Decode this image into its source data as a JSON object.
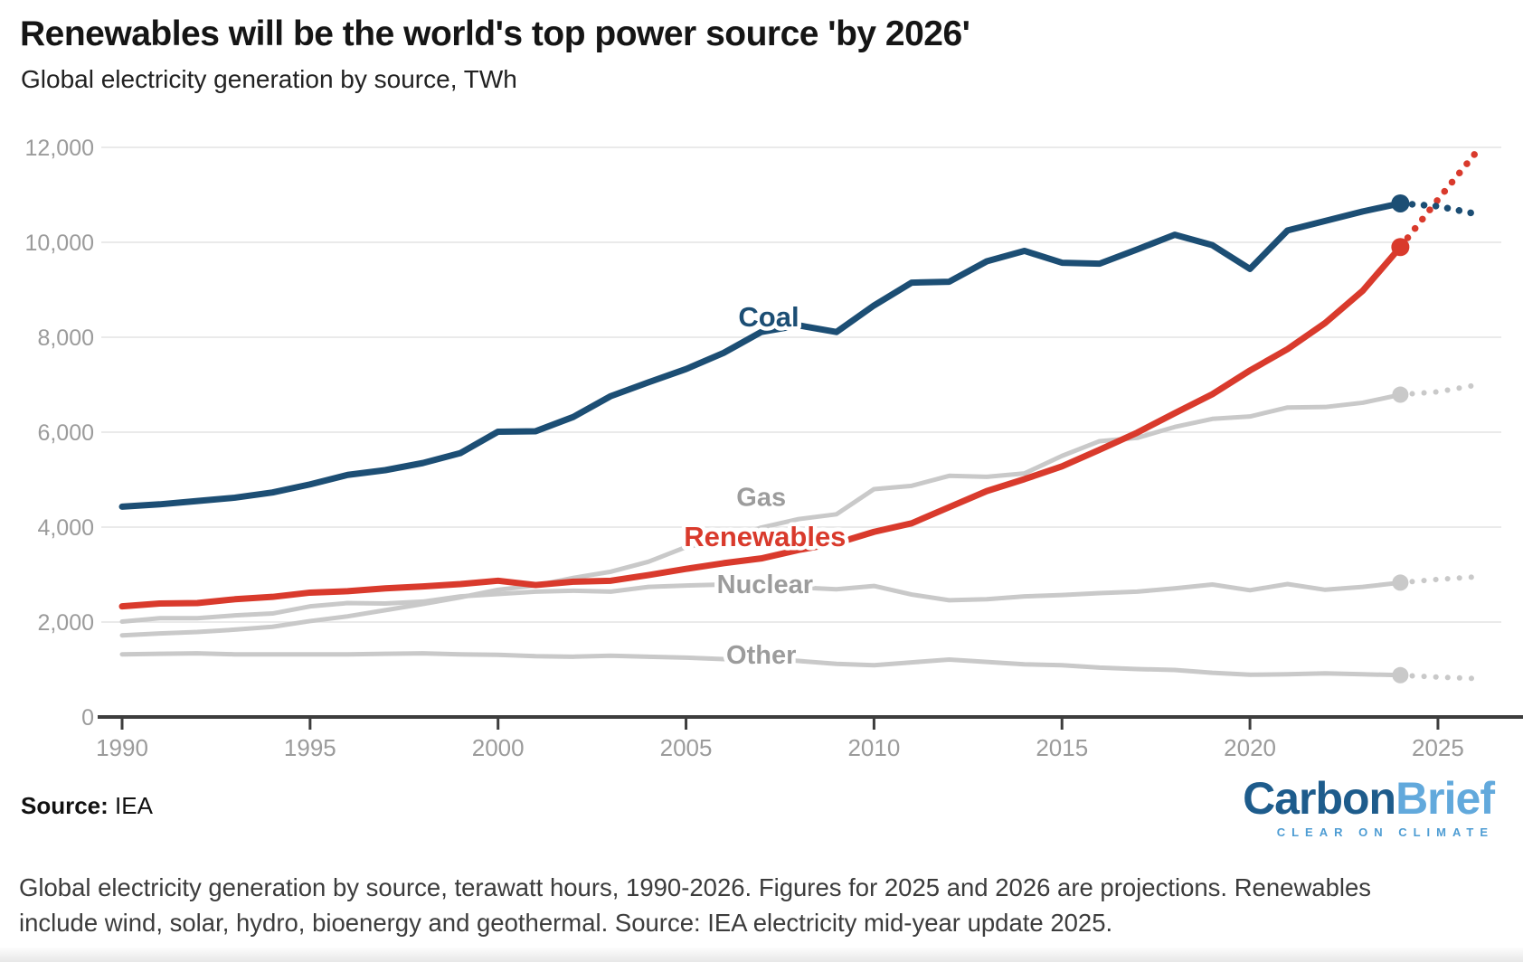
{
  "header": {
    "title": "Renewables will be the world's top power source 'by 2026'",
    "subtitle": "Global electricity generation by source, TWh"
  },
  "footer": {
    "source_label": "Source:",
    "source_value": "IEA",
    "caption": "Global electricity generation by source, terawatt hours, 1990-2026. Figures for 2025 and 2026 are projections. Renewables include wind, solar, hydro, bioenergy and geothermal. Source: IEA electricity mid-year update 2025.",
    "logo": {
      "part1": "Carbon",
      "part2": "Brief",
      "tagline": "CLEAR ON CLIMATE"
    }
  },
  "colors": {
    "coal": "#1c4e74",
    "renewables": "#d93a2c",
    "gray_line": "#c9c9c9",
    "gray_label": "#9c9c9c",
    "grid": "#e3e3e3",
    "axis": "#3d3d3d",
    "tick_text": "#9b9b9b"
  },
  "chart_data": {
    "type": "line",
    "title": "Renewables will be the world's top power source 'by 2026'",
    "subtitle": "Global electricity generation by source, TWh",
    "xlabel": "",
    "ylabel": "TWh",
    "xlim": [
      1990,
      2026
    ],
    "ylim": [
      0,
      12000
    ],
    "grid": true,
    "legend_position": "inline-labels",
    "yticks": [
      0,
      2000,
      4000,
      6000,
      8000,
      10000,
      12000
    ],
    "xticks": [
      1990,
      1995,
      2000,
      2005,
      2010,
      2015,
      2020,
      2025
    ],
    "years": [
      1990,
      1991,
      1992,
      1993,
      1994,
      1995,
      1996,
      1997,
      1998,
      1999,
      2000,
      2001,
      2002,
      2003,
      2004,
      2005,
      2006,
      2007,
      2008,
      2009,
      2010,
      2011,
      2012,
      2013,
      2014,
      2015,
      2016,
      2017,
      2018,
      2019,
      2020,
      2021,
      2022,
      2023,
      2024
    ],
    "projection_years": [
      2024,
      2025,
      2026
    ],
    "projection_note": "2025 and 2026 are projections (dotted)",
    "series": [
      {
        "id": "gas",
        "label": "Gas",
        "color": "#c9c9c9",
        "label_color": "#9c9c9c",
        "emphasis": false,
        "label_at": {
          "year": 2007.0,
          "value": 4640
        },
        "values": [
          1720,
          1760,
          1790,
          1840,
          1900,
          2020,
          2120,
          2250,
          2380,
          2520,
          2680,
          2770,
          2930,
          3060,
          3270,
          3580,
          3720,
          3990,
          4170,
          4270,
          4800,
          4870,
          5080,
          5060,
          5130,
          5500,
          5810,
          5880,
          6110,
          6280,
          6330,
          6520,
          6530,
          6620,
          6790
        ],
        "projection": [
          6790,
          6850,
          6990
        ]
      },
      {
        "id": "nuclear",
        "label": "Nuclear",
        "color": "#c9c9c9",
        "label_color": "#9c9c9c",
        "emphasis": false,
        "label_at": {
          "year": 2007.1,
          "value": 2800
        },
        "values": [
          2010,
          2080,
          2080,
          2140,
          2180,
          2330,
          2400,
          2390,
          2430,
          2540,
          2590,
          2640,
          2660,
          2640,
          2740,
          2770,
          2790,
          2720,
          2730,
          2690,
          2760,
          2580,
          2460,
          2480,
          2540,
          2570,
          2610,
          2640,
          2710,
          2790,
          2670,
          2800,
          2680,
          2740,
          2830
        ],
        "projection": [
          2830,
          2900,
          2950
        ]
      },
      {
        "id": "other",
        "label": "Other",
        "color": "#c9c9c9",
        "label_color": "#9c9c9c",
        "emphasis": false,
        "label_at": {
          "year": 2007.0,
          "value": 1310
        },
        "values": [
          1320,
          1330,
          1340,
          1320,
          1320,
          1320,
          1320,
          1330,
          1340,
          1320,
          1310,
          1280,
          1270,
          1290,
          1270,
          1250,
          1220,
          1230,
          1180,
          1120,
          1090,
          1150,
          1210,
          1160,
          1110,
          1090,
          1040,
          1010,
          990,
          930,
          890,
          900,
          920,
          900,
          880
        ],
        "projection": [
          880,
          840,
          810
        ]
      },
      {
        "id": "renewables",
        "label": "Renewables",
        "color": "#d93a2c",
        "label_color": "#d93a2c",
        "emphasis": true,
        "label_at": {
          "year": 2007.1,
          "value": 3790
        },
        "values": [
          2330,
          2390,
          2400,
          2480,
          2530,
          2620,
          2650,
          2710,
          2750,
          2800,
          2870,
          2780,
          2850,
          2870,
          2990,
          3120,
          3240,
          3340,
          3520,
          3660,
          3900,
          4080,
          4420,
          4760,
          5010,
          5280,
          5630,
          5990,
          6400,
          6800,
          7300,
          7750,
          8300,
          8980,
          9900
        ],
        "projection": [
          9900,
          10900,
          11880
        ]
      },
      {
        "id": "coal",
        "label": "Coal",
        "color": "#1c4e74",
        "label_color": "#1c4e74",
        "emphasis": true,
        "label_at": {
          "year": 2007.2,
          "value": 8420
        },
        "values": [
          4430,
          4480,
          4550,
          4620,
          4730,
          4900,
          5100,
          5200,
          5350,
          5560,
          6010,
          6020,
          6320,
          6760,
          7050,
          7330,
          7670,
          8110,
          8250,
          8110,
          8670,
          9150,
          9170,
          9600,
          9820,
          9570,
          9550,
          9850,
          10160,
          9940,
          9440,
          10250,
          10450,
          10650,
          10820
        ],
        "projection": [
          10820,
          10760,
          10600
        ]
      }
    ]
  }
}
